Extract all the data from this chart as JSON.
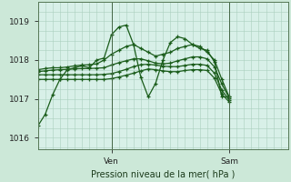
{
  "bg_color": "#cce8d8",
  "plot_bg_color": "#d8f0e8",
  "grid_color": "#aacfbe",
  "line_color": "#1a5c1a",
  "ylim": [
    1015.7,
    1019.5
  ],
  "yticks": [
    1016,
    1017,
    1018,
    1019
  ],
  "xlim": [
    0,
    34
  ],
  "ven_x": 10,
  "sam_x": 26,
  "xlabel": "Pression niveau de la mer( hPa )",
  "series": [
    {
      "x": [
        0,
        1,
        2,
        3,
        4,
        5,
        6,
        7,
        8,
        9,
        10,
        11,
        12,
        13,
        14,
        15,
        16,
        17,
        18,
        19,
        20,
        21,
        22,
        23,
        24,
        25,
        26
      ],
      "y": [
        1016.3,
        1016.6,
        1017.1,
        1017.5,
        1017.75,
        1017.8,
        1017.85,
        1017.8,
        1018.0,
        1018.05,
        1018.65,
        1018.85,
        1018.9,
        1018.4,
        1017.55,
        1017.05,
        1017.4,
        1018.0,
        1018.45,
        1018.6,
        1018.55,
        1018.4,
        1018.3,
        1018.25,
        1017.95,
        1017.05,
        1017.05
      ]
    },
    {
      "x": [
        0,
        1,
        2,
        3,
        4,
        5,
        6,
        7,
        8,
        9,
        10,
        11,
        12,
        13,
        14,
        15,
        16,
        17,
        18,
        19,
        20,
        21,
        22,
        23,
        24,
        25,
        26
      ],
      "y": [
        1017.75,
        1017.78,
        1017.8,
        1017.8,
        1017.82,
        1017.85,
        1017.87,
        1017.88,
        1017.9,
        1018.0,
        1018.15,
        1018.25,
        1018.35,
        1018.4,
        1018.3,
        1018.2,
        1018.1,
        1018.15,
        1018.2,
        1018.3,
        1018.35,
        1018.4,
        1018.35,
        1018.2,
        1018.0,
        1017.5,
        1017.05
      ]
    },
    {
      "x": [
        0,
        1,
        2,
        3,
        4,
        5,
        6,
        7,
        8,
        9,
        10,
        11,
        12,
        13,
        14,
        15,
        16,
        17,
        18,
        19,
        20,
        21,
        22,
        23,
        24,
        25,
        26
      ],
      "y": [
        1017.7,
        1017.72,
        1017.74,
        1017.75,
        1017.76,
        1017.77,
        1017.78,
        1017.78,
        1017.79,
        1017.8,
        1017.87,
        1017.93,
        1017.98,
        1018.03,
        1018.03,
        1017.98,
        1017.92,
        1017.9,
        1017.92,
        1017.98,
        1018.03,
        1018.08,
        1018.08,
        1018.03,
        1017.82,
        1017.38,
        1017.02
      ]
    },
    {
      "x": [
        0,
        1,
        2,
        3,
        4,
        5,
        6,
        7,
        8,
        9,
        10,
        11,
        12,
        13,
        14,
        15,
        16,
        17,
        18,
        19,
        20,
        21,
        22,
        23,
        24,
        25,
        26
      ],
      "y": [
        1017.62,
        1017.62,
        1017.62,
        1017.62,
        1017.62,
        1017.62,
        1017.62,
        1017.62,
        1017.62,
        1017.63,
        1017.65,
        1017.7,
        1017.76,
        1017.83,
        1017.88,
        1017.89,
        1017.87,
        1017.84,
        1017.83,
        1017.83,
        1017.86,
        1017.89,
        1017.89,
        1017.86,
        1017.66,
        1017.22,
        1016.97
      ]
    },
    {
      "x": [
        0,
        1,
        2,
        3,
        4,
        5,
        6,
        7,
        8,
        9,
        10,
        11,
        12,
        13,
        14,
        15,
        16,
        17,
        18,
        19,
        20,
        21,
        22,
        23,
        24,
        25,
        26
      ],
      "y": [
        1017.5,
        1017.5,
        1017.5,
        1017.5,
        1017.5,
        1017.5,
        1017.5,
        1017.5,
        1017.5,
        1017.5,
        1017.52,
        1017.56,
        1017.61,
        1017.66,
        1017.72,
        1017.77,
        1017.75,
        1017.72,
        1017.7,
        1017.7,
        1017.73,
        1017.75,
        1017.75,
        1017.73,
        1017.53,
        1017.12,
        1016.92
      ]
    }
  ]
}
